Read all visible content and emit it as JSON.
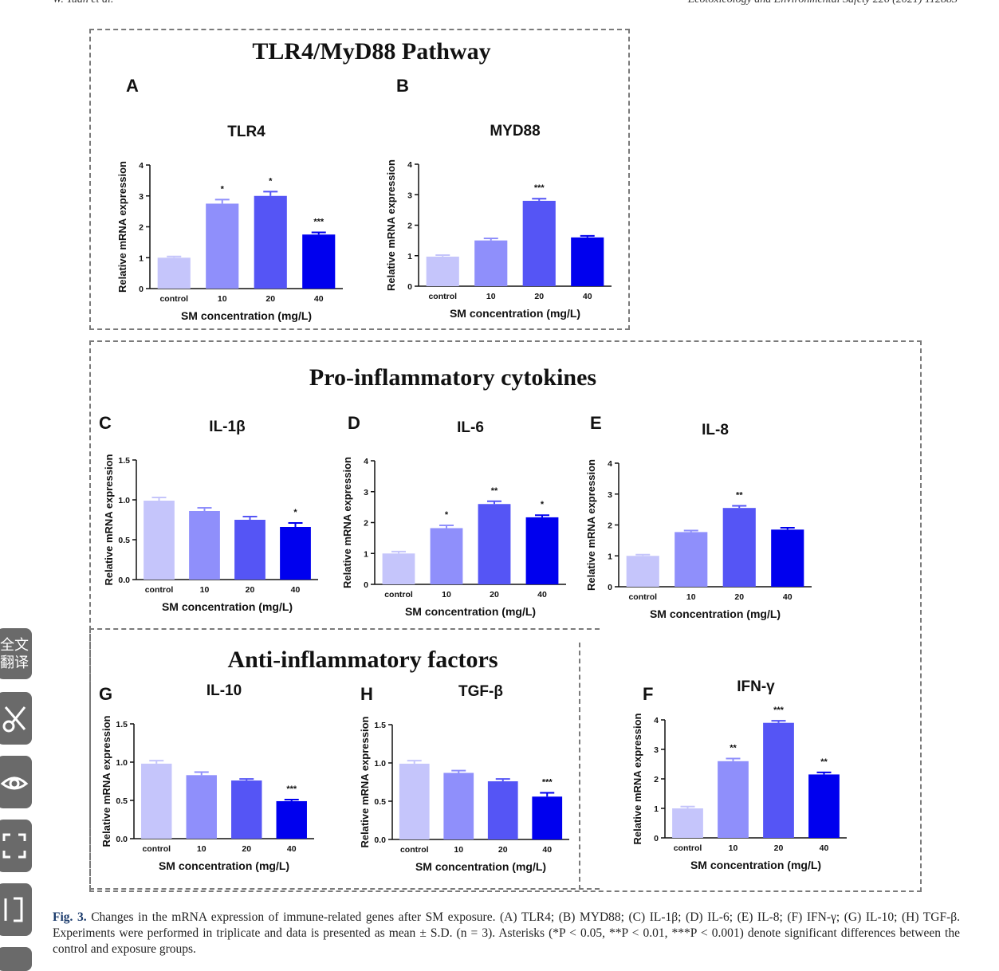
{
  "header": {
    "left": "W. Yuan et al.",
    "right": "Ecotoxicology and Environmental Safety 226 (2021) 112883"
  },
  "groups": {
    "tlr4": "TLR4/MyD88 Pathway",
    "pro": "Pro-inflammatory cytokines",
    "anti": "Anti-inflammatory factors"
  },
  "colors": {
    "control": "#c5c5fb",
    "c10": "#8f8ffb",
    "c20": "#5555f5",
    "c40": "#0000ee",
    "axis": "#111111"
  },
  "common": {
    "ylabel": "Relative mRNA expression",
    "xlabel": "SM concentration (mg/L)",
    "categories": [
      "control",
      "10",
      "20",
      "40"
    ]
  },
  "chart_data": [
    {
      "id": "A",
      "type": "bar",
      "title": "TLR4",
      "ylim": [
        0,
        4
      ],
      "ticks": [
        "0",
        "1",
        "2",
        "3",
        "4"
      ],
      "values": [
        1.0,
        2.75,
        3.0,
        1.75
      ],
      "errors": [
        0.04,
        0.13,
        0.14,
        0.07
      ],
      "sig": [
        "",
        "*",
        "*",
        "***"
      ]
    },
    {
      "id": "B",
      "type": "bar",
      "title": "MYD88",
      "ylim": [
        0,
        4
      ],
      "ticks": [
        "0",
        "1",
        "2",
        "3",
        "4"
      ],
      "values": [
        0.97,
        1.5,
        2.8,
        1.6
      ],
      "errors": [
        0.05,
        0.07,
        0.07,
        0.05
      ],
      "sig": [
        "",
        "",
        "***",
        ""
      ]
    },
    {
      "id": "C",
      "type": "bar",
      "title": "IL-1β",
      "ylim": [
        0,
        1.5
      ],
      "ticks": [
        "0.0",
        "0.5",
        "1.0",
        "1.5"
      ],
      "values": [
        0.99,
        0.86,
        0.75,
        0.66
      ],
      "errors": [
        0.04,
        0.04,
        0.04,
        0.05
      ],
      "sig": [
        "",
        "",
        "",
        "*"
      ]
    },
    {
      "id": "D",
      "type": "bar",
      "title": "IL-6",
      "ylim": [
        0,
        4
      ],
      "ticks": [
        "0",
        "1",
        "2",
        "3",
        "4"
      ],
      "values": [
        1.0,
        1.82,
        2.6,
        2.17
      ],
      "errors": [
        0.06,
        0.09,
        0.09,
        0.07
      ],
      "sig": [
        "",
        "*",
        "**",
        "*"
      ]
    },
    {
      "id": "E",
      "type": "bar",
      "title": "IL-8",
      "ylim": [
        0,
        4
      ],
      "ticks": [
        "0",
        "1",
        "2",
        "3",
        "4"
      ],
      "values": [
        1.0,
        1.77,
        2.55,
        1.85
      ],
      "errors": [
        0.04,
        0.05,
        0.07,
        0.06
      ],
      "sig": [
        "",
        "",
        "**",
        ""
      ]
    },
    {
      "id": "F",
      "type": "bar",
      "title": "IFN-γ",
      "ylim": [
        0,
        4
      ],
      "ticks": [
        "0",
        "1",
        "2",
        "3",
        "4"
      ],
      "values": [
        1.0,
        2.6,
        3.9,
        2.15
      ],
      "errors": [
        0.06,
        0.09,
        0.07,
        0.07
      ],
      "sig": [
        "",
        "**",
        "***",
        "**"
      ]
    },
    {
      "id": "G",
      "type": "bar",
      "title": "IL-10",
      "ylim": [
        0,
        1.5
      ],
      "ticks": [
        "0.0",
        "0.5",
        "1.0",
        "1.5"
      ],
      "values": [
        0.98,
        0.83,
        0.76,
        0.49
      ],
      "errors": [
        0.04,
        0.04,
        0.02,
        0.02
      ],
      "sig": [
        "",
        "",
        "",
        "***"
      ]
    },
    {
      "id": "H",
      "type": "bar",
      "title": "TGF-β",
      "ylim": [
        0,
        1.5
      ],
      "ticks": [
        "0.0",
        "0.5",
        "1.0",
        "1.5"
      ],
      "values": [
        0.99,
        0.87,
        0.76,
        0.56
      ],
      "errors": [
        0.04,
        0.03,
        0.03,
        0.05
      ],
      "sig": [
        "",
        "",
        "",
        "***"
      ]
    }
  ],
  "caption": {
    "label": "Fig. 3.",
    "text": "Changes in the mRNA expression of immune-related genes after SM exposure. (A) TLR4; (B) MYD88; (C) IL-1β; (D) IL-6; (E) IL-8; (F) IFN-γ; (G) IL-10; (H) TGF-β. Experiments were performed in triplicate and data is presented as mean ± S.D. (n = 3). Asterisks (*P < 0.05, **P < 0.01, ***P < 0.001) denote significant differences between the control and exposure groups."
  },
  "sidebar": {
    "translate": "全文翻译",
    "icons": [
      "scissors-icon",
      "eye-icon",
      "scan-icon",
      "split-icon"
    ]
  }
}
